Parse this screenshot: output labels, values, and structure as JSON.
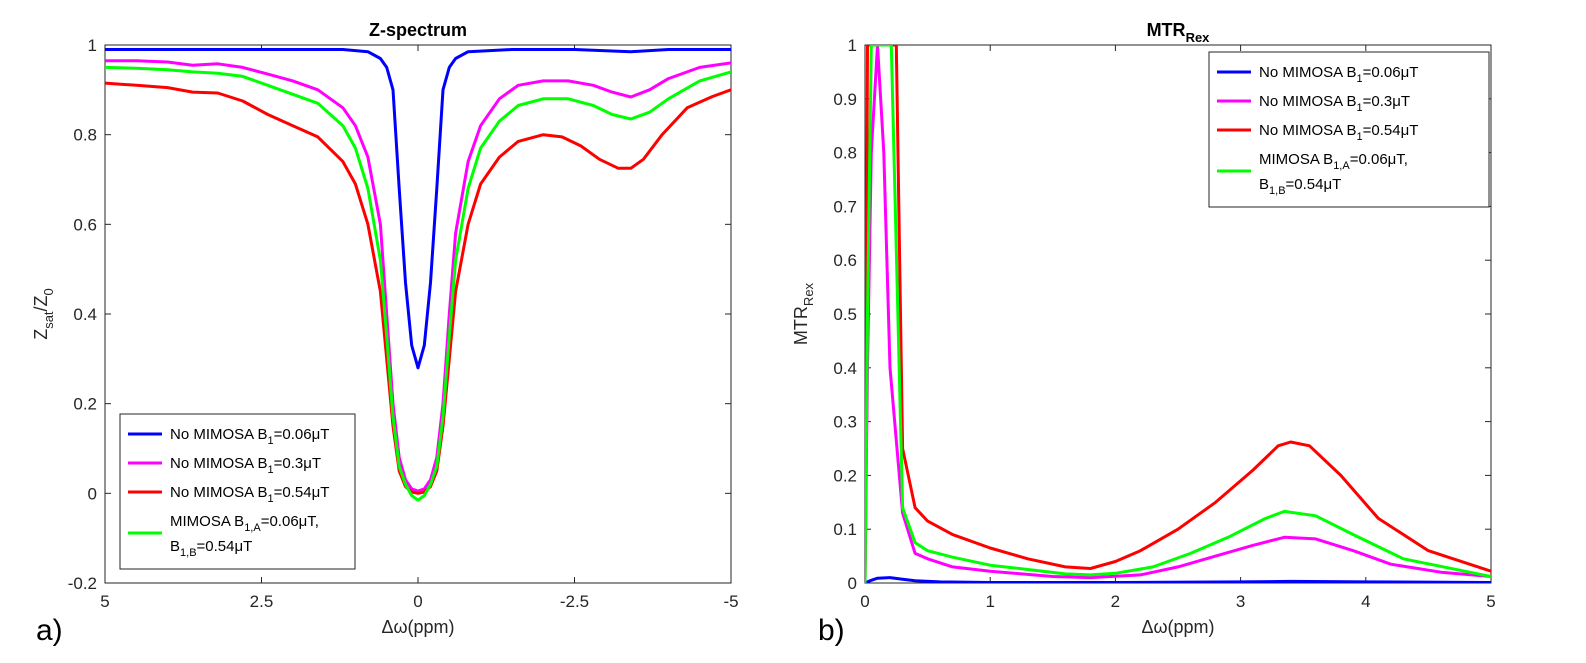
{
  "panel_labels": [
    "a)",
    "b)"
  ],
  "colors": {
    "blue": "#0000ff",
    "magenta": "#ff00ff",
    "red": "#ff0000",
    "green": "#00ff00",
    "axis": "#262626"
  },
  "chart_data": [
    {
      "type": "line",
      "title": "Z-spectrum",
      "xlabel": "Δω(ppm)",
      "ylabel": "Z_sat/Z_0",
      "xlim": [
        5,
        -5
      ],
      "x_reversed": true,
      "ylim": [
        -0.2,
        1
      ],
      "x_ticks": [
        5,
        2.5,
        0,
        -2.5,
        -5
      ],
      "x_tick_labels": [
        "5",
        "2.5",
        "0",
        "-2.5",
        "-5"
      ],
      "y_ticks": [
        -0.2,
        0,
        0.2,
        0.4,
        0.6,
        0.8,
        1
      ],
      "y_tick_labels": [
        "-0.2",
        "0",
        "0.2",
        "0.4",
        "0.6",
        "0.8",
        "1"
      ],
      "grid": false,
      "legend_position": "bottom-left",
      "series": [
        {
          "name": "No MIMOSA B1=0.06μT",
          "color": "blue",
          "points": [
            [
              5,
              0.99
            ],
            [
              4,
              0.99
            ],
            [
              3,
              0.99
            ],
            [
              2,
              0.99
            ],
            [
              1.2,
              0.99
            ],
            [
              0.8,
              0.985
            ],
            [
              0.6,
              0.97
            ],
            [
              0.5,
              0.95
            ],
            [
              0.4,
              0.9
            ],
            [
              0.3,
              0.68
            ],
            [
              0.2,
              0.47
            ],
            [
              0.1,
              0.33
            ],
            [
              0,
              0.28
            ],
            [
              -0.1,
              0.33
            ],
            [
              -0.2,
              0.47
            ],
            [
              -0.3,
              0.68
            ],
            [
              -0.4,
              0.9
            ],
            [
              -0.5,
              0.95
            ],
            [
              -0.6,
              0.97
            ],
            [
              -0.8,
              0.985
            ],
            [
              -1.5,
              0.99
            ],
            [
              -2.5,
              0.99
            ],
            [
              -3.4,
              0.985
            ],
            [
              -4,
              0.99
            ],
            [
              -5,
              0.99
            ]
          ]
        },
        {
          "name": "No MIMOSA B1=0.3μT",
          "color": "magenta",
          "points": [
            [
              5,
              0.965
            ],
            [
              4.5,
              0.965
            ],
            [
              4,
              0.962
            ],
            [
              3.6,
              0.955
            ],
            [
              3.2,
              0.958
            ],
            [
              2.8,
              0.95
            ],
            [
              2.4,
              0.935
            ],
            [
              2,
              0.92
            ],
            [
              1.6,
              0.9
            ],
            [
              1.2,
              0.86
            ],
            [
              1,
              0.82
            ],
            [
              0.8,
              0.75
            ],
            [
              0.6,
              0.6
            ],
            [
              0.5,
              0.4
            ],
            [
              0.4,
              0.2
            ],
            [
              0.3,
              0.08
            ],
            [
              0.2,
              0.03
            ],
            [
              0.1,
              0.01
            ],
            [
              0,
              0.005
            ],
            [
              -0.1,
              0.01
            ],
            [
              -0.2,
              0.03
            ],
            [
              -0.3,
              0.08
            ],
            [
              -0.4,
              0.2
            ],
            [
              -0.5,
              0.4
            ],
            [
              -0.6,
              0.58
            ],
            [
              -0.8,
              0.74
            ],
            [
              -1,
              0.82
            ],
            [
              -1.3,
              0.88
            ],
            [
              -1.6,
              0.91
            ],
            [
              -2,
              0.92
            ],
            [
              -2.4,
              0.92
            ],
            [
              -2.8,
              0.91
            ],
            [
              -3.1,
              0.895
            ],
            [
              -3.4,
              0.884
            ],
            [
              -3.7,
              0.9
            ],
            [
              -4,
              0.925
            ],
            [
              -4.5,
              0.95
            ],
            [
              -5,
              0.96
            ]
          ]
        },
        {
          "name": "No MIMOSA B1=0.54μT",
          "color": "red",
          "points": [
            [
              5,
              0.915
            ],
            [
              4.5,
              0.91
            ],
            [
              4,
              0.905
            ],
            [
              3.6,
              0.895
            ],
            [
              3.2,
              0.893
            ],
            [
              2.8,
              0.875
            ],
            [
              2.4,
              0.845
            ],
            [
              2,
              0.82
            ],
            [
              1.6,
              0.795
            ],
            [
              1.2,
              0.74
            ],
            [
              1,
              0.69
            ],
            [
              0.8,
              0.6
            ],
            [
              0.6,
              0.45
            ],
            [
              0.5,
              0.3
            ],
            [
              0.4,
              0.15
            ],
            [
              0.3,
              0.05
            ],
            [
              0.2,
              0.015
            ],
            [
              0.1,
              0.003
            ],
            [
              0,
              0
            ],
            [
              -0.1,
              0.003
            ],
            [
              -0.2,
              0.015
            ],
            [
              -0.3,
              0.05
            ],
            [
              -0.4,
              0.15
            ],
            [
              -0.5,
              0.3
            ],
            [
              -0.6,
              0.45
            ],
            [
              -0.8,
              0.6
            ],
            [
              -1,
              0.69
            ],
            [
              -1.3,
              0.75
            ],
            [
              -1.6,
              0.785
            ],
            [
              -2,
              0.8
            ],
            [
              -2.3,
              0.795
            ],
            [
              -2.6,
              0.775
            ],
            [
              -2.9,
              0.745
            ],
            [
              -3.2,
              0.725
            ],
            [
              -3.4,
              0.725
            ],
            [
              -3.6,
              0.745
            ],
            [
              -3.9,
              0.8
            ],
            [
              -4.3,
              0.86
            ],
            [
              -4.7,
              0.885
            ],
            [
              -5,
              0.9
            ]
          ]
        },
        {
          "name": "MIMOSA B1,A=0.06μT, B1,B=0.54μT",
          "color": "green",
          "points": [
            [
              5,
              0.95
            ],
            [
              4.5,
              0.948
            ],
            [
              4,
              0.945
            ],
            [
              3.6,
              0.94
            ],
            [
              3.2,
              0.937
            ],
            [
              2.8,
              0.93
            ],
            [
              2.4,
              0.91
            ],
            [
              2,
              0.89
            ],
            [
              1.6,
              0.87
            ],
            [
              1.2,
              0.82
            ],
            [
              1,
              0.77
            ],
            [
              0.8,
              0.68
            ],
            [
              0.6,
              0.52
            ],
            [
              0.5,
              0.35
            ],
            [
              0.4,
              0.17
            ],
            [
              0.3,
              0.06
            ],
            [
              0.2,
              0.02
            ],
            [
              0.1,
              -0.005
            ],
            [
              0,
              -0.015
            ],
            [
              -0.1,
              -0.005
            ],
            [
              -0.2,
              0.02
            ],
            [
              -0.3,
              0.06
            ],
            [
              -0.4,
              0.17
            ],
            [
              -0.5,
              0.35
            ],
            [
              -0.6,
              0.52
            ],
            [
              -0.8,
              0.68
            ],
            [
              -1,
              0.77
            ],
            [
              -1.3,
              0.83
            ],
            [
              -1.6,
              0.865
            ],
            [
              -2,
              0.88
            ],
            [
              -2.4,
              0.88
            ],
            [
              -2.8,
              0.865
            ],
            [
              -3.1,
              0.845
            ],
            [
              -3.4,
              0.835
            ],
            [
              -3.7,
              0.85
            ],
            [
              -4,
              0.88
            ],
            [
              -4.5,
              0.92
            ],
            [
              -5,
              0.94
            ]
          ]
        }
      ],
      "legend": [
        {
          "color": "blue",
          "prefix": "No MIMOSA B",
          "sub": "1",
          "suffix": "=0.06μT"
        },
        {
          "color": "magenta",
          "prefix": "No MIMOSA B",
          "sub": "1",
          "suffix": "=0.3μT"
        },
        {
          "color": "red",
          "prefix": "No MIMOSA B",
          "sub": "1",
          "suffix": "=0.54μT"
        },
        {
          "color": "green",
          "prefix": "MIMOSA B",
          "sub": "1,A",
          "suffix": "=0.06μT,",
          "line2_prefix": "B",
          "line2_sub": "1,B",
          "line2_suffix": "=0.54μT"
        }
      ]
    },
    {
      "type": "line",
      "title": "MTR_Rex",
      "xlabel": "Δω(ppm)",
      "ylabel": "MTR_Rex",
      "xlim": [
        0,
        5
      ],
      "ylim": [
        0,
        1
      ],
      "x_ticks": [
        0,
        1,
        2,
        3,
        4,
        5
      ],
      "x_tick_labels": [
        "0",
        "1",
        "2",
        "3",
        "4",
        "5"
      ],
      "y_ticks": [
        0,
        0.1,
        0.2,
        0.3,
        0.4,
        0.5,
        0.6,
        0.7,
        0.8,
        0.9,
        1
      ],
      "y_tick_labels": [
        "0",
        "0.1",
        "0.2",
        "0.3",
        "0.4",
        "0.5",
        "0.6",
        "0.7",
        "0.8",
        "0.9",
        "1"
      ],
      "grid": false,
      "legend_position": "top-right",
      "series": [
        {
          "name": "No MIMOSA B1=0.06μT",
          "color": "blue",
          "points": [
            [
              0,
              0
            ],
            [
              0.05,
              0.005
            ],
            [
              0.1,
              0.009
            ],
            [
              0.2,
              0.01
            ],
            [
              0.3,
              0.007
            ],
            [
              0.4,
              0.004
            ],
            [
              0.6,
              0.002
            ],
            [
              1,
              0.001
            ],
            [
              2,
              0.001
            ],
            [
              3,
              0.002
            ],
            [
              3.4,
              0.003
            ],
            [
              4,
              0.002
            ],
            [
              5,
              0.001
            ]
          ]
        },
        {
          "name": "No MIMOSA B1=0.3μT",
          "color": "magenta",
          "points": [
            [
              0,
              0
            ],
            [
              0.02,
              0.4
            ],
            [
              0.05,
              0.8
            ],
            [
              0.1,
              1
            ],
            [
              0.15,
              0.8
            ],
            [
              0.2,
              0.4
            ],
            [
              0.3,
              0.13
            ],
            [
              0.4,
              0.055
            ],
            [
              0.5,
              0.045
            ],
            [
              0.7,
              0.03
            ],
            [
              1,
              0.022
            ],
            [
              1.5,
              0.012
            ],
            [
              1.8,
              0.01
            ],
            [
              2.2,
              0.015
            ],
            [
              2.5,
              0.03
            ],
            [
              2.8,
              0.05
            ],
            [
              3.1,
              0.07
            ],
            [
              3.35,
              0.085
            ],
            [
              3.6,
              0.082
            ],
            [
              3.9,
              0.06
            ],
            [
              4.2,
              0.035
            ],
            [
              4.6,
              0.02
            ],
            [
              5,
              0.012
            ]
          ]
        },
        {
          "name": "No MIMOSA B1=0.54μT",
          "color": "red",
          "points": [
            [
              0,
              0
            ],
            [
              0.01,
              0.5
            ],
            [
              0.02,
              1
            ],
            [
              0.25,
              1
            ],
            [
              0.3,
              0.25
            ],
            [
              0.4,
              0.14
            ],
            [
              0.5,
              0.115
            ],
            [
              0.7,
              0.09
            ],
            [
              1,
              0.065
            ],
            [
              1.3,
              0.045
            ],
            [
              1.6,
              0.03
            ],
            [
              1.8,
              0.027
            ],
            [
              2,
              0.04
            ],
            [
              2.2,
              0.06
            ],
            [
              2.5,
              0.1
            ],
            [
              2.8,
              0.15
            ],
            [
              3.1,
              0.21
            ],
            [
              3.3,
              0.255
            ],
            [
              3.4,
              0.262
            ],
            [
              3.55,
              0.255
            ],
            [
              3.8,
              0.2
            ],
            [
              4.1,
              0.12
            ],
            [
              4.5,
              0.06
            ],
            [
              5,
              0.022
            ]
          ]
        },
        {
          "name": "MIMOSA B1,A=0.06μT, B1,B=0.54μT",
          "color": "green",
          "points": [
            [
              0,
              0
            ],
            [
              0.02,
              0.5
            ],
            [
              0.05,
              1
            ],
            [
              0.21,
              1
            ],
            [
              0.3,
              0.14
            ],
            [
              0.4,
              0.075
            ],
            [
              0.5,
              0.06
            ],
            [
              0.7,
              0.048
            ],
            [
              1,
              0.033
            ],
            [
              1.3,
              0.025
            ],
            [
              1.6,
              0.017
            ],
            [
              1.8,
              0.015
            ],
            [
              2,
              0.018
            ],
            [
              2.3,
              0.03
            ],
            [
              2.6,
              0.055
            ],
            [
              2.9,
              0.085
            ],
            [
              3.2,
              0.12
            ],
            [
              3.35,
              0.133
            ],
            [
              3.6,
              0.125
            ],
            [
              3.9,
              0.09
            ],
            [
              4.3,
              0.045
            ],
            [
              5,
              0.012
            ]
          ]
        }
      ],
      "legend": [
        {
          "color": "blue",
          "prefix": "No MIMOSA B",
          "sub": "1",
          "suffix": "=0.06μT"
        },
        {
          "color": "magenta",
          "prefix": "No MIMOSA B",
          "sub": "1",
          "suffix": "=0.3μT"
        },
        {
          "color": "red",
          "prefix": "No MIMOSA B",
          "sub": "1",
          "suffix": "=0.54μT"
        },
        {
          "color": "green",
          "prefix": "MIMOSA B",
          "sub": "1,A",
          "suffix": "=0.06μT,",
          "line2_prefix": "B",
          "line2_sub": "1,B",
          "line2_suffix": "=0.54μT"
        }
      ]
    }
  ]
}
